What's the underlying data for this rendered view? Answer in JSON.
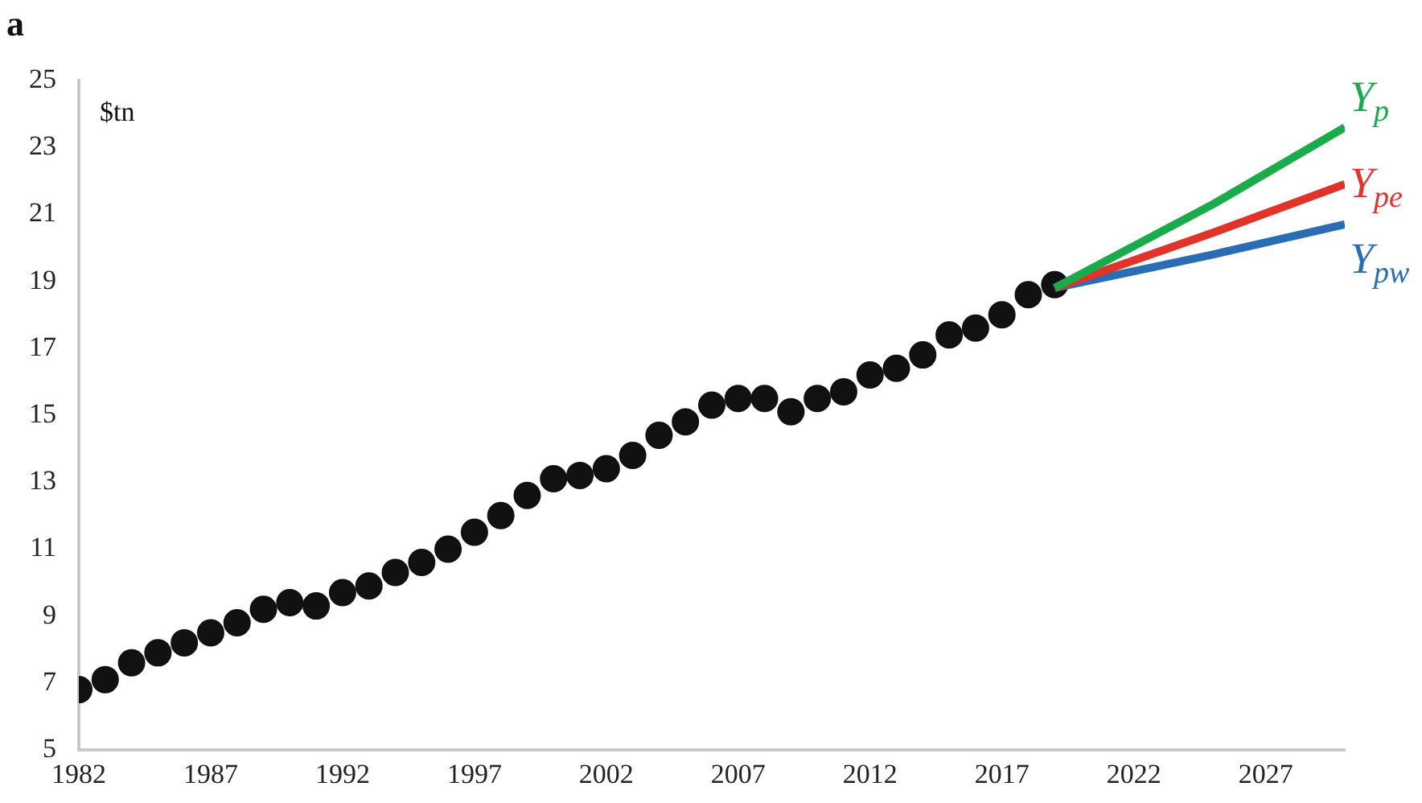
{
  "chart_data": {
    "type": "line",
    "title": "a",
    "ylabel": "$tn",
    "xlim": [
      1982,
      2030
    ],
    "xticks": [
      1982,
      1987,
      1992,
      1997,
      2002,
      2007,
      2012,
      2017,
      2022,
      2027
    ],
    "ylim": [
      5,
      25
    ],
    "yticks": [
      5,
      7,
      9,
      11,
      13,
      15,
      17,
      19,
      21,
      23,
      25
    ],
    "grid": false,
    "legend": false,
    "series": [
      {
        "type": "scatter",
        "marker": "circle",
        "color": "#111111",
        "x": [
          1982,
          1983,
          1984,
          1985,
          1986,
          1987,
          1988,
          1989,
          1990,
          1991,
          1992,
          1993,
          1994,
          1995,
          1996,
          1997,
          1998,
          1999,
          2000,
          2001,
          2002,
          2003,
          2004,
          2005,
          2006,
          2007,
          2008,
          2009,
          2010,
          2011,
          2012,
          2013,
          2014,
          2015,
          2016,
          2017,
          2018,
          2019
        ],
        "values": [
          6.8,
          7.1,
          7.6,
          7.9,
          8.2,
          8.5,
          8.8,
          9.2,
          9.4,
          9.3,
          9.7,
          9.9,
          10.3,
          10.6,
          11.0,
          11.5,
          12.0,
          12.6,
          13.1,
          13.2,
          13.4,
          13.8,
          14.4,
          14.8,
          15.3,
          15.5,
          15.5,
          15.1,
          15.5,
          15.7,
          16.2,
          16.4,
          16.8,
          17.4,
          17.6,
          18.0,
          18.6,
          18.9
        ]
      },
      {
        "name": "Y$_{p}$",
        "color": "#1aab4a",
        "x": [
          2019,
          2025,
          2030
        ],
        "values": [
          18.8,
          21.3,
          23.6
        ]
      },
      {
        "name": "Y$_{pe}$",
        "color": "#e0332a",
        "x": [
          2019,
          2025,
          2030
        ],
        "values": [
          18.8,
          20.45,
          21.9
        ]
      },
      {
        "name": "Y$_{pw}$",
        "color": "#2a6db5",
        "x": [
          2019,
          2025,
          2030
        ],
        "values": [
          18.8,
          19.8,
          20.7
        ]
      }
    ]
  }
}
